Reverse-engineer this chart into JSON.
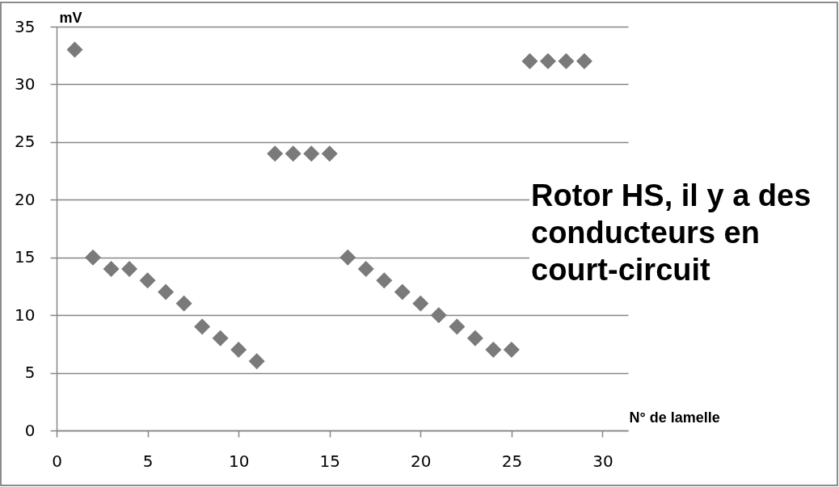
{
  "chart_data": {
    "type": "scatter",
    "xlabel": "N° de lamelle",
    "ylabel": "mV",
    "annotations": [
      "Rotor HS, il y a des conducteurs en court-circuit"
    ],
    "x": [
      1,
      2,
      3,
      4,
      5,
      6,
      7,
      8,
      9,
      10,
      11,
      12,
      13,
      14,
      15,
      16,
      17,
      18,
      19,
      20,
      21,
      22,
      23,
      24,
      25,
      26,
      27,
      28,
      29
    ],
    "series": [
      {
        "color": "#7a7a7a",
        "values": [
          33,
          15,
          14,
          14,
          13,
          12,
          11,
          9,
          8,
          7,
          6,
          24,
          24,
          24,
          24,
          15,
          14,
          13,
          12,
          11,
          10,
          9,
          8,
          7,
          7,
          32,
          32,
          32,
          32
        ]
      }
    ],
    "xlim": [
      0,
      31.4
    ],
    "ylim": [
      0,
      35
    ],
    "xticks": [
      0,
      5,
      10,
      15,
      20,
      25,
      30
    ],
    "yticks": [
      0,
      5,
      10,
      15,
      20,
      25,
      30,
      35
    ],
    "grid": "y",
    "marker": "diamond"
  }
}
